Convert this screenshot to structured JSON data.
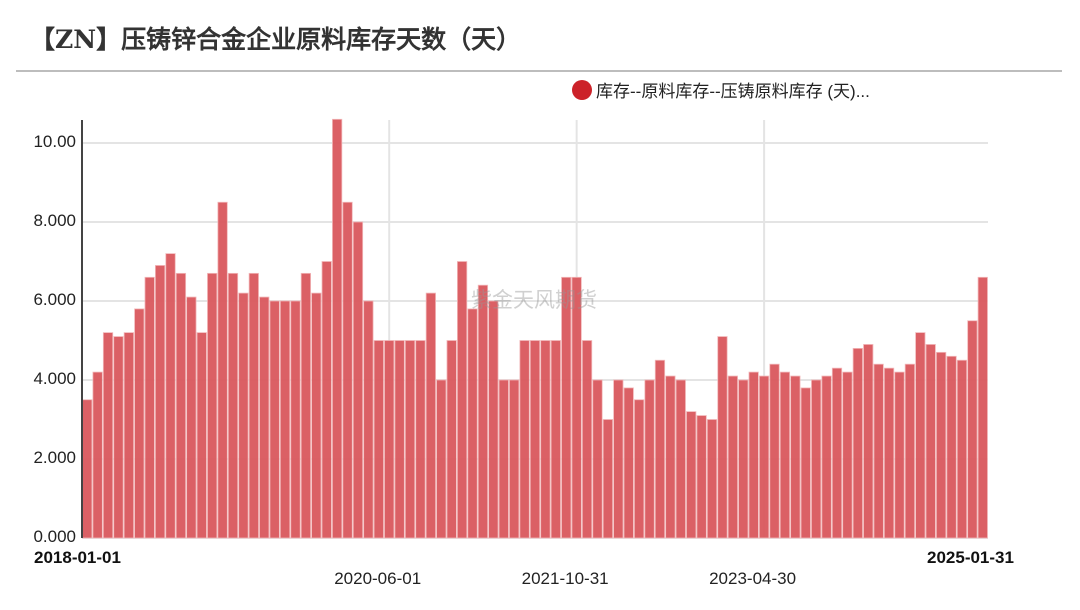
{
  "header": {
    "title": "【ZN】压铸锌合金企业原料库存天数（天）"
  },
  "legend": {
    "label": "库存--原料库存--压铸原料库存 (天)...",
    "color": "#cc2229"
  },
  "watermark": "紫金天风期货",
  "colors": {
    "bar": "#d9575d",
    "bar_edge": "#f2b8ba",
    "grid": "#e4e4e4",
    "axis": "#444444"
  },
  "chart_data": {
    "type": "bar",
    "title": "【ZN】压铸锌合金企业原料库存天数（天）",
    "xlabel": "",
    "ylabel": "",
    "ylim": [
      0,
      10.6
    ],
    "grid": true,
    "legend_position": "top-right",
    "yticks": [
      "0.000",
      "2.000",
      "4.000",
      "6.000",
      "8.000",
      "10.00"
    ],
    "ytick_values": [
      0,
      2,
      4,
      6,
      8,
      10
    ],
    "xticks": [
      {
        "label": "2018-01-01",
        "index": 0,
        "bold": true,
        "row": 1
      },
      {
        "label": "2020-06-01",
        "index": 29,
        "bold": false,
        "row": 2
      },
      {
        "label": "2021-10-31",
        "index": 47,
        "bold": false,
        "row": 2
      },
      {
        "label": "2023-04-30",
        "index": 65,
        "bold": false,
        "row": 2
      },
      {
        "label": "2025-01-31",
        "index": 86,
        "bold": true,
        "row": 1
      }
    ],
    "series": [
      {
        "name": "库存--原料库存--压铸原料库存 (天)...",
        "values": [
          3.5,
          4.2,
          5.2,
          5.1,
          5.2,
          5.8,
          6.6,
          6.9,
          7.2,
          6.7,
          6.1,
          5.2,
          6.7,
          8.5,
          6.7,
          6.2,
          6.7,
          6.1,
          6.0,
          6.0,
          6.0,
          6.7,
          6.2,
          7.0,
          10.6,
          8.5,
          8.0,
          6.0,
          5.0,
          5.0,
          5.0,
          5.0,
          5.0,
          6.2,
          4.0,
          5.0,
          7.0,
          5.8,
          6.4,
          6.0,
          4.0,
          4.0,
          5.0,
          5.0,
          5.0,
          5.0,
          6.6,
          6.6,
          5.0,
          4.0,
          3.0,
          4.0,
          3.8,
          3.5,
          4.0,
          4.5,
          4.1,
          4.0,
          3.2,
          3.1,
          3.0,
          5.1,
          4.1,
          4.0,
          4.2,
          4.1,
          4.4,
          4.2,
          4.1,
          3.8,
          4.0,
          4.1,
          4.3,
          4.2,
          4.8,
          4.9,
          4.4,
          4.3,
          4.2,
          4.4,
          5.2,
          4.9,
          4.7,
          4.6,
          4.5,
          5.5,
          6.6
        ]
      }
    ]
  }
}
